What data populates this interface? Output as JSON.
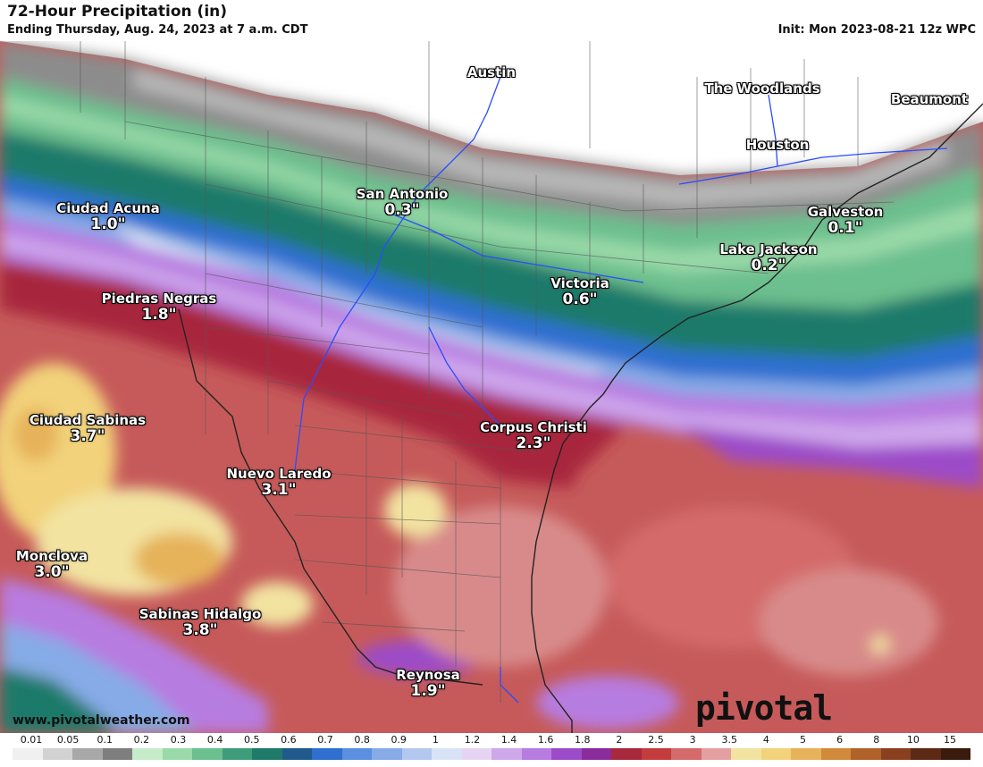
{
  "header": {
    "title": "72-Hour Precipitation (in)",
    "subtitle": "Ending Thursday, Aug. 24, 2023 at 7 a.m. CDT",
    "init": "Init: Mon 2023-08-21 12z WPC"
  },
  "cities": [
    {
      "name": "Austin",
      "value": ""
    },
    {
      "name": "The Woodlands",
      "value": ""
    },
    {
      "name": "Beaumont",
      "value": ""
    },
    {
      "name": "Houston",
      "value": ""
    },
    {
      "name": "San Antonio",
      "value": "0.3\""
    },
    {
      "name": "Galveston",
      "value": "0.1\""
    },
    {
      "name": "Ciudad Acuna",
      "value": "1.0\""
    },
    {
      "name": "Lake Jackson",
      "value": "0.2\""
    },
    {
      "name": "Victoria",
      "value": "0.6\""
    },
    {
      "name": "Piedras Negras",
      "value": "1.8\""
    },
    {
      "name": "Ciudad Sabinas",
      "value": "3.7\""
    },
    {
      "name": "Corpus Christi",
      "value": "2.3\""
    },
    {
      "name": "Nuevo Laredo",
      "value": "3.1\""
    },
    {
      "name": "Monclova",
      "value": "3.0\""
    },
    {
      "name": "Sabinas Hidalgo",
      "value": "3.8\""
    },
    {
      "name": "Reynosa",
      "value": "1.9\""
    }
  ],
  "footer": {
    "url": "www.pivotalweather.com",
    "brand": "pivotal weather"
  },
  "legend": {
    "labels": [
      "0.01",
      "0.05",
      "0.1",
      "0.2",
      "0.3",
      "0.4",
      "0.5",
      "0.6",
      "0.7",
      "0.8",
      "0.9",
      "1",
      "1.2",
      "1.4",
      "1.6",
      "1.8",
      "2",
      "2.5",
      "3",
      "3.5",
      "4",
      "5",
      "6",
      "8",
      "10",
      "15"
    ],
    "colors": [
      "#f0f0f0",
      "#d2d2d2",
      "#a8a8a8",
      "#7e7e7e",
      "#c6ebc8",
      "#9ad9a8",
      "#6cbf8e",
      "#3f9c7a",
      "#1f7a6a",
      "#205a8c",
      "#2e6fd0",
      "#5b8fe0",
      "#86abe6",
      "#b2c8ee",
      "#d8e4f6",
      "#e6d4f4",
      "#cfa8ec",
      "#b77ce0",
      "#9c4cc8",
      "#8a2c9c",
      "#a8283c",
      "#c43c3c",
      "#d46a6a",
      "#e4a0a0",
      "#f2e3a0",
      "#f2d27a",
      "#e6b25a",
      "#d08a3a",
      "#b0622a",
      "#8a401e",
      "#5c2a14",
      "#3a1a0c"
    ]
  }
}
